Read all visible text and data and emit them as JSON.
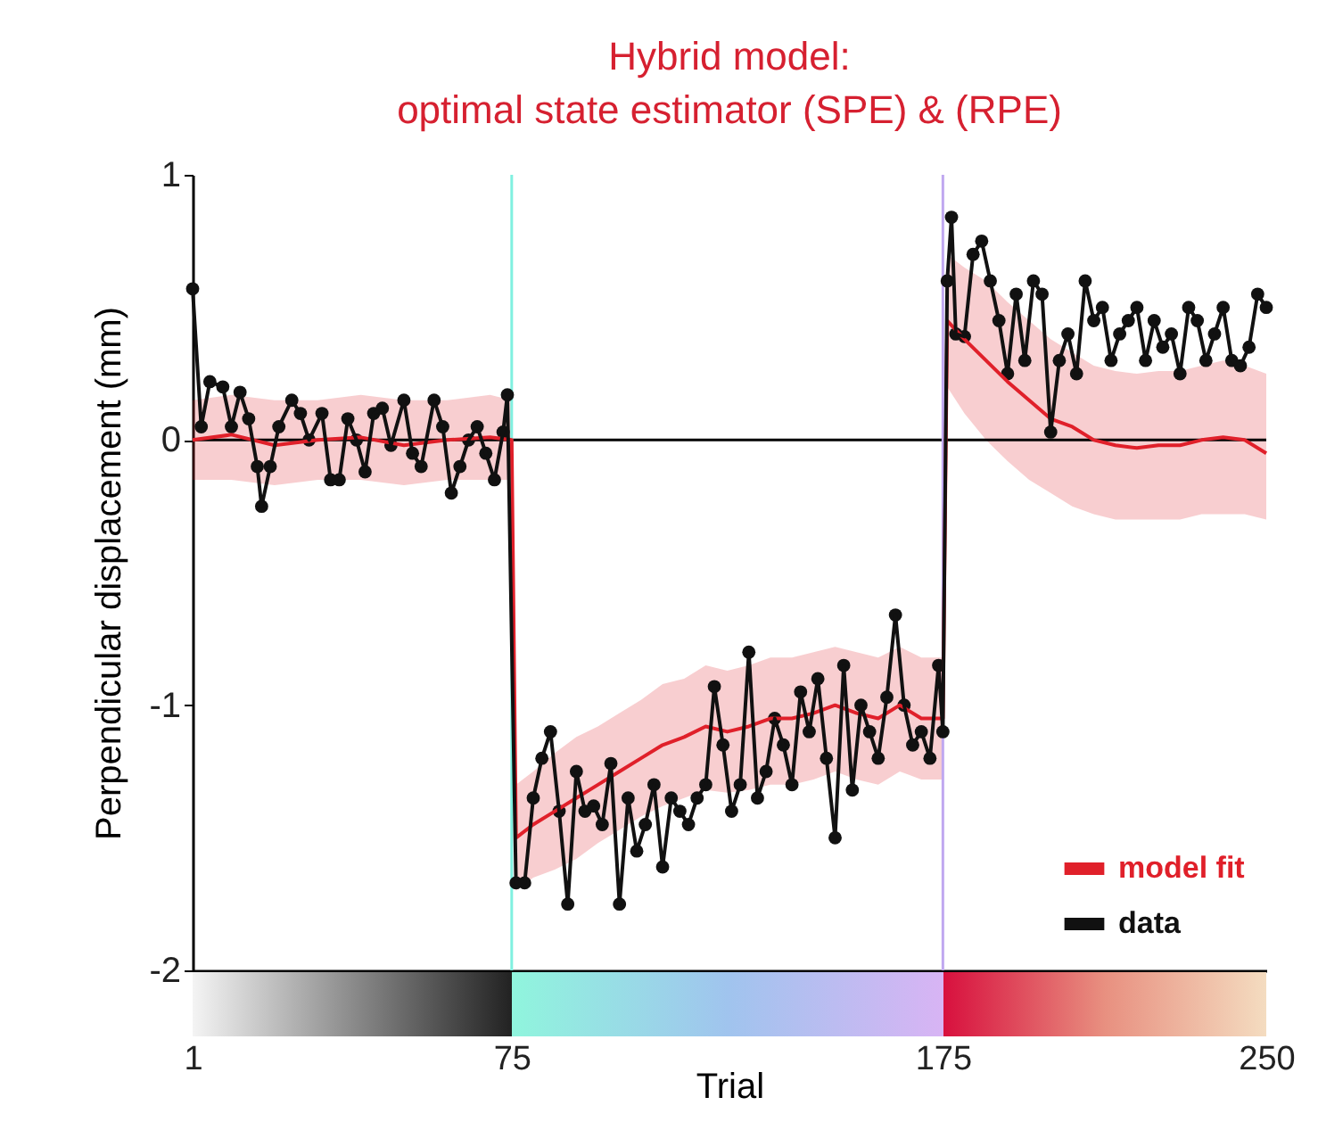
{
  "chart_data": {
    "type": "line",
    "title": "Hybrid model:\noptimal state estimator (SPE) & (RPE)",
    "xlabel": "Trial",
    "ylabel": "Perpendicular displacement (mm)",
    "xlim": [
      1,
      250
    ],
    "xticks": [
      1,
      75,
      175,
      250
    ],
    "ylim": [
      -2,
      1
    ],
    "yticks": [
      {
        "value": -2,
        "label": "-2"
      },
      {
        "value": -1,
        "label": "-1"
      },
      {
        "value": 0,
        "label": "0"
      },
      {
        "value": 1,
        "label": "1"
      }
    ],
    "grid": false,
    "legend": "bottom right",
    "line_style": "solid",
    "ref_lines": [
      {
        "axis": "y",
        "value": 0,
        "color": "#000000"
      },
      {
        "axis": "x",
        "value": 75,
        "color": "#80f0e0"
      },
      {
        "axis": "x",
        "value": 175,
        "color": "#c0a8f0"
      }
    ],
    "series": [
      {
        "name": "model fit",
        "color": "#e0202a",
        "marker": "none",
        "x": [
          1,
          10,
          20,
          30,
          40,
          50,
          60,
          70,
          75,
          76,
          80,
          85,
          90,
          95,
          100,
          105,
          110,
          115,
          120,
          125,
          130,
          135,
          140,
          145,
          150,
          155,
          160,
          165,
          170,
          175,
          176,
          180,
          185,
          190,
          195,
          200,
          205,
          210,
          215,
          220,
          225,
          230,
          235,
          240,
          245,
          250
        ],
        "values": [
          0.0,
          0.02,
          -0.02,
          0.0,
          0.01,
          -0.02,
          0.0,
          0.01,
          0.0,
          -1.5,
          -1.45,
          -1.4,
          -1.35,
          -1.3,
          -1.25,
          -1.2,
          -1.15,
          -1.12,
          -1.08,
          -1.1,
          -1.08,
          -1.05,
          -1.05,
          -1.03,
          -1.0,
          -1.03,
          -1.05,
          -1.0,
          -1.05,
          -1.05,
          0.45,
          0.38,
          0.3,
          0.22,
          0.15,
          0.08,
          0.05,
          0.0,
          -0.02,
          -0.03,
          -0.02,
          -0.02,
          0.0,
          0.01,
          0.0,
          -0.05
        ],
        "lower": [
          -0.15,
          -0.15,
          -0.17,
          -0.15,
          -0.15,
          -0.17,
          -0.15,
          -0.15,
          -0.15,
          -1.7,
          -1.65,
          -1.62,
          -1.58,
          -1.52,
          -1.47,
          -1.42,
          -1.38,
          -1.35,
          -1.32,
          -1.33,
          -1.32,
          -1.3,
          -1.3,
          -1.28,
          -1.25,
          -1.28,
          -1.3,
          -1.25,
          -1.28,
          -1.28,
          0.2,
          0.1,
          0.0,
          -0.08,
          -0.15,
          -0.2,
          -0.25,
          -0.28,
          -0.3,
          -0.3,
          -0.3,
          -0.3,
          -0.28,
          -0.28,
          -0.28,
          -0.3
        ],
        "upper": [
          0.15,
          0.17,
          0.15,
          0.15,
          0.17,
          0.15,
          0.15,
          0.17,
          0.15,
          -1.3,
          -1.25,
          -1.18,
          -1.12,
          -1.08,
          -1.03,
          -0.98,
          -0.92,
          -0.9,
          -0.85,
          -0.87,
          -0.85,
          -0.82,
          -0.82,
          -0.8,
          -0.78,
          -0.8,
          -0.82,
          -0.78,
          -0.82,
          -0.82,
          0.7,
          0.65,
          0.6,
          0.52,
          0.45,
          0.38,
          0.33,
          0.28,
          0.26,
          0.25,
          0.26,
          0.26,
          0.28,
          0.3,
          0.28,
          0.25
        ]
      },
      {
        "name": "data",
        "color": "#111111",
        "marker": "circle",
        "x": [
          1,
          3,
          5,
          8,
          10,
          12,
          14,
          16,
          17,
          19,
          21,
          24,
          26,
          28,
          31,
          33,
          35,
          37,
          39,
          41,
          43,
          45,
          47,
          50,
          52,
          54,
          57,
          59,
          61,
          63,
          65,
          67,
          69,
          71,
          73,
          74,
          76,
          78,
          80,
          82,
          84,
          86,
          88,
          90,
          92,
          94,
          96,
          98,
          100,
          102,
          104,
          106,
          108,
          110,
          112,
          114,
          116,
          118,
          120,
          122,
          124,
          126,
          128,
          130,
          132,
          134,
          136,
          138,
          140,
          142,
          144,
          146,
          148,
          150,
          152,
          154,
          156,
          158,
          160,
          162,
          164,
          166,
          168,
          170,
          172,
          174,
          175,
          176,
          177,
          178,
          180,
          182,
          184,
          186,
          188,
          190,
          192,
          194,
          196,
          198,
          200,
          202,
          204,
          206,
          208,
          210,
          212,
          214,
          216,
          218,
          220,
          222,
          224,
          226,
          228,
          230,
          232,
          234,
          236,
          238,
          240,
          242,
          244,
          246,
          248,
          250
        ],
        "values": [
          0.57,
          0.05,
          0.22,
          0.2,
          0.05,
          0.18,
          0.08,
          -0.1,
          -0.25,
          -0.1,
          0.05,
          0.15,
          0.1,
          0.0,
          0.1,
          -0.15,
          -0.15,
          0.08,
          0.0,
          -0.12,
          0.1,
          0.12,
          -0.02,
          0.15,
          -0.05,
          -0.1,
          0.15,
          0.05,
          -0.2,
          -0.1,
          0.0,
          0.05,
          -0.05,
          -0.15,
          0.03,
          0.17,
          -1.67,
          -1.67,
          -1.35,
          -1.2,
          -1.1,
          -1.4,
          -1.75,
          -1.25,
          -1.4,
          -1.38,
          -1.45,
          -1.22,
          -1.75,
          -1.35,
          -1.55,
          -1.45,
          -1.3,
          -1.61,
          -1.35,
          -1.4,
          -1.45,
          -1.35,
          -1.3,
          -0.93,
          -1.15,
          -1.4,
          -1.3,
          -0.8,
          -1.35,
          -1.25,
          -1.05,
          -1.15,
          -1.3,
          -0.95,
          -1.1,
          -0.9,
          -1.2,
          -1.5,
          -0.85,
          -1.32,
          -1.0,
          -1.1,
          -1.2,
          -0.97,
          -0.66,
          -1.0,
          -1.15,
          -1.1,
          -1.2,
          -0.85,
          -1.1,
          0.6,
          0.84,
          0.4,
          0.39,
          0.7,
          0.75,
          0.6,
          0.45,
          0.25,
          0.55,
          0.3,
          0.6,
          0.55,
          0.03,
          0.3,
          0.4,
          0.25,
          0.6,
          0.45,
          0.5,
          0.3,
          0.4,
          0.45,
          0.5,
          0.3,
          0.45,
          0.35,
          0.4,
          0.25,
          0.5,
          0.45,
          0.3,
          0.4,
          0.5,
          0.3,
          0.28,
          0.35,
          0.55,
          0.5
        ]
      }
    ]
  }
}
